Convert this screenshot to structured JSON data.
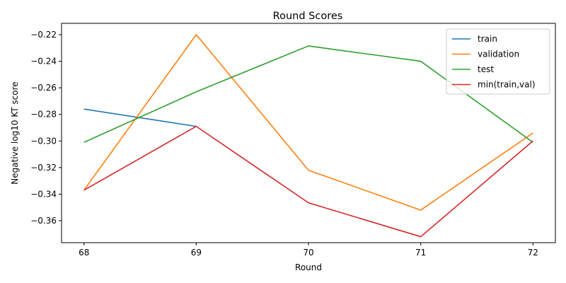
{
  "chart_data": {
    "type": "line",
    "title": "Round Scores",
    "xlabel": "Round",
    "ylabel": "Negative log10 KT score",
    "x": [
      68,
      69,
      70,
      71,
      72
    ],
    "xlim": [
      67.8,
      72.2
    ],
    "ylim": [
      -0.3765,
      -0.2115
    ],
    "yticks": [
      -0.36,
      -0.34,
      -0.32,
      -0.3,
      -0.28,
      -0.26,
      -0.24,
      -0.22
    ],
    "ytick_labels": [
      "−0.36",
      "−0.34",
      "−0.32",
      "−0.30",
      "−0.28",
      "−0.26",
      "−0.24",
      "−0.22"
    ],
    "grid": false,
    "legend_position": "top-right",
    "series": [
      {
        "name": "train",
        "color": "#1f77b4",
        "values": [
          -0.276,
          -0.289,
          null,
          null,
          null
        ]
      },
      {
        "name": "validation",
        "color": "#ff7f0e",
        "values": [
          -0.337,
          -0.22,
          -0.322,
          -0.352,
          -0.294
        ]
      },
      {
        "name": "test",
        "color": "#2ca02c",
        "values": [
          -0.301,
          -0.263,
          -0.2285,
          -0.24,
          -0.301
        ]
      },
      {
        "name": "min(train,val)",
        "color": "#d62728",
        "values": [
          -0.337,
          -0.289,
          -0.3465,
          -0.372,
          -0.3
        ]
      }
    ]
  }
}
